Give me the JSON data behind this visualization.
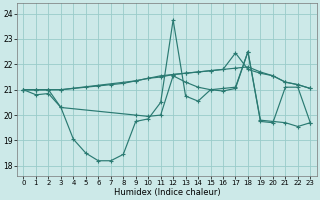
{
  "xlabel": "Humidex (Indice chaleur)",
  "x_ticks": [
    0,
    1,
    2,
    3,
    4,
    5,
    6,
    7,
    8,
    9,
    10,
    11,
    12,
    13,
    14,
    15,
    16,
    17,
    18,
    19,
    20,
    21,
    22,
    23
  ],
  "y_ticks": [
    18,
    19,
    20,
    21,
    22,
    23,
    24
  ],
  "ylim": [
    17.6,
    24.4
  ],
  "xlim": [
    -0.5,
    23.5
  ],
  "bg_color": "#cce9e8",
  "grid_color": "#99ccca",
  "line_color": "#2a7a72",
  "lines": [
    {
      "x": [
        0,
        1,
        2,
        3,
        4,
        5,
        6,
        7,
        8,
        9,
        10,
        11,
        12,
        13,
        14,
        15,
        16,
        17,
        18,
        19,
        20,
        21,
        22,
        23
      ],
      "y": [
        21.0,
        20.8,
        20.85,
        20.3,
        19.05,
        18.5,
        18.2,
        18.2,
        18.45,
        19.75,
        19.85,
        20.5,
        23.75,
        20.75,
        20.55,
        21.0,
        20.95,
        21.05,
        22.5,
        19.8,
        19.75,
        19.7,
        19.55,
        19.7
      ]
    },
    {
      "x": [
        0,
        1,
        2,
        3,
        4,
        5,
        6,
        7,
        8,
        9,
        10,
        11,
        12,
        13,
        14,
        15,
        16,
        17,
        18,
        19,
        20,
        21,
        22,
        23
      ],
      "y": [
        21.0,
        21.0,
        21.0,
        21.0,
        21.05,
        21.1,
        21.15,
        21.2,
        21.25,
        21.35,
        21.45,
        21.55,
        21.6,
        21.65,
        21.7,
        21.75,
        21.8,
        21.85,
        21.9,
        21.7,
        21.55,
        21.3,
        21.2,
        21.05
      ]
    },
    {
      "x": [
        0,
        1,
        2,
        3,
        9,
        10,
        11,
        12,
        13,
        14,
        15,
        16,
        17,
        18,
        19,
        20,
        21,
        22,
        23
      ],
      "y": [
        21.0,
        21.0,
        21.0,
        21.0,
        21.35,
        21.45,
        21.5,
        21.6,
        21.65,
        21.7,
        21.75,
        21.8,
        22.45,
        21.8,
        21.65,
        21.55,
        21.3,
        21.2,
        21.05
      ]
    },
    {
      "x": [
        0,
        1,
        2,
        3,
        9,
        10,
        11,
        12,
        13,
        14,
        15,
        16,
        17,
        18,
        19,
        20,
        21,
        22,
        23
      ],
      "y": [
        21.0,
        21.0,
        21.0,
        20.3,
        20.0,
        19.95,
        20.0,
        21.55,
        21.3,
        21.1,
        21.0,
        21.05,
        21.1,
        22.5,
        19.75,
        19.7,
        21.1,
        21.1,
        19.7
      ]
    }
  ]
}
